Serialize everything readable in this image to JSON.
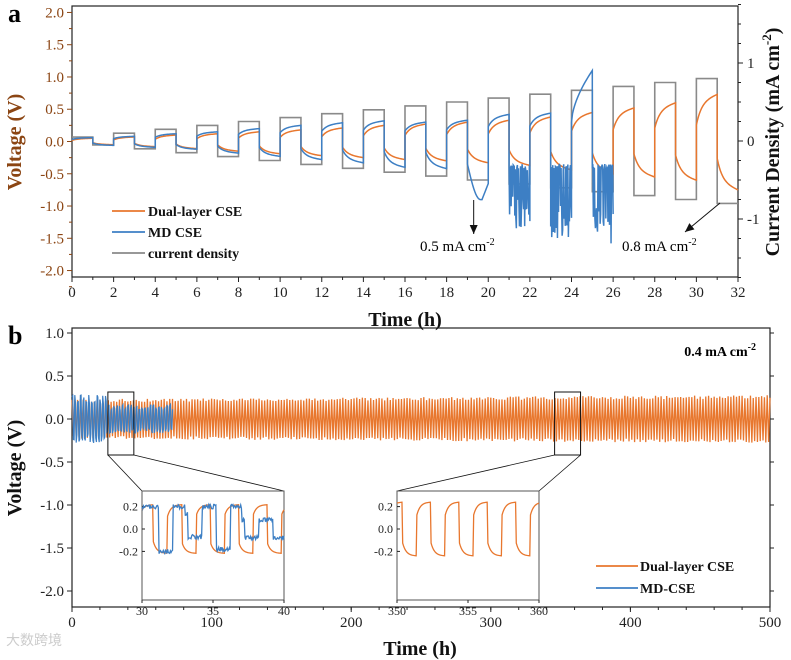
{
  "chart_data": [
    {
      "panel_label": "a",
      "type": "line",
      "xlabel": "Time (h)",
      "ylabel": "Voltage (V)",
      "y2label": "Current Density (mA cm",
      "y2label_sup": "-2",
      "y2label_close": ")",
      "xlim": [
        0,
        32
      ],
      "ylim": [
        -2.1,
        2.1
      ],
      "y2lim": [
        -1.8,
        1.8
      ],
      "xticks": [
        "0",
        "2",
        "4",
        "6",
        "8",
        "10",
        "12",
        "14",
        "16",
        "18",
        "20",
        "22",
        "24",
        "26",
        "28",
        "30",
        "32"
      ],
      "yticks": [
        "2.0",
        "1.5",
        "1.0",
        "0.5",
        "0.0",
        "-0.5",
        "-1.0",
        "-1.5",
        "-2.0"
      ],
      "y2ticks": [
        "1",
        "0",
        "-1"
      ],
      "legend": [
        "Dual-layer CSE",
        "MD CSE",
        "current density"
      ],
      "legend_position": "bottom-left",
      "colors": {
        "dual": "#E8772E",
        "md": "#3D7FC4",
        "current": "#8A8A8A",
        "left_axis": "#8B4513"
      },
      "cycle_period_h": 2,
      "current_density_mA_cm2_per_cycle": [
        0.05,
        0.1,
        0.15,
        0.2,
        0.25,
        0.3,
        0.35,
        0.4,
        0.45,
        0.5,
        0.55,
        0.6,
        0.65,
        0.7,
        0.75,
        0.8
      ],
      "dual_layer_voltage_end_positive": [
        0.05,
        0.07,
        0.1,
        0.12,
        0.15,
        0.18,
        0.21,
        0.25,
        0.27,
        0.3,
        0.33,
        0.38,
        0.45,
        0.52,
        0.6,
        0.73
      ],
      "dual_layer_voltage_end_negative": [
        -0.05,
        -0.08,
        -0.11,
        -0.15,
        -0.19,
        -0.22,
        -0.25,
        -0.28,
        -0.3,
        -0.33,
        -0.37,
        -0.44,
        -0.5,
        -0.55,
        -0.6,
        -0.75
      ],
      "md_voltage_end_positive": [
        0.06,
        0.08,
        0.12,
        0.15,
        0.2,
        0.25,
        0.29,
        0.32,
        0.3,
        0.33,
        0.42,
        0.44,
        1.1
      ],
      "md_voltage_end_negative": [
        -0.06,
        -0.09,
        -0.12,
        -0.18,
        -0.23,
        -0.28,
        -0.33,
        -0.4,
        -0.42,
        -0.9,
        -1.35,
        -1.5,
        -1.6
      ],
      "md_end_time_h": 26,
      "annotations": [
        {
          "text": "0.5 mA cm",
          "sup": "-2",
          "points_to_h": 19.3
        },
        {
          "text": "0.8 mA cm",
          "sup": "-2",
          "points_to_h": 31.5
        }
      ]
    },
    {
      "panel_label": "b",
      "type": "line",
      "xlabel": "Time (h)",
      "ylabel": "Voltage (V)",
      "xlim": [
        0,
        500
      ],
      "ylim": [
        -2.2,
        1.05
      ],
      "xticks": [
        "0",
        "100",
        "200",
        "300",
        "400",
        "500"
      ],
      "yticks": [
        "1.0",
        "0.5",
        "0.0",
        "-0.5",
        "-1.0",
        "-1.5",
        "-2.0"
      ],
      "annotation": {
        "text": "0.4 mA cm",
        "sup": "-2"
      },
      "legend": [
        "Dual-layer CSE",
        "MD-CSE"
      ],
      "legend_position": "bottom-right",
      "cycle_period_h": 2,
      "dual_layer_amplitude_V": 0.23,
      "dual_layer_amplitude_end_V": 0.28,
      "md_amplitude_V": 0.28,
      "md_end_time_h": 72,
      "insets": [
        {
          "xlim": [
            30,
            40
          ],
          "xticks": [
            "30",
            "35",
            "40"
          ],
          "yticks": [
            "0.2",
            "0.0",
            "-0.2"
          ],
          "ylim": [
            -0.35,
            0.35
          ],
          "series": [
            "dual",
            "md"
          ]
        },
        {
          "xlim": [
            350,
            360
          ],
          "xticks": [
            "350",
            "355",
            "360"
          ],
          "yticks": [
            "0.2",
            "0.0",
            "-0.2"
          ],
          "ylim": [
            -0.35,
            0.35
          ],
          "series": [
            "dual"
          ]
        }
      ]
    }
  ],
  "watermark": "大数跨境"
}
